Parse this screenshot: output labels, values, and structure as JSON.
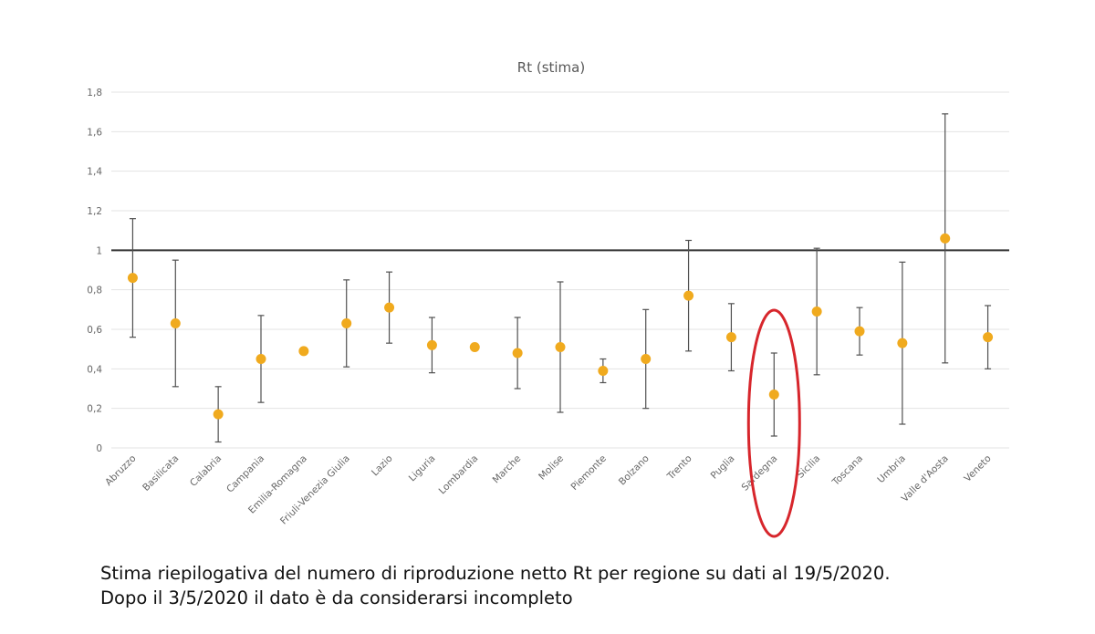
{
  "chart_data": {
    "type": "scatter",
    "subtype": "point estimates with error bars",
    "title": "Rt (stima)",
    "xlabel": "",
    "ylabel": "",
    "ylim": [
      0,
      1.8
    ],
    "yticks": [
      "0",
      "0,2",
      "0,4",
      "0,6",
      "0,8",
      "1",
      "1,2",
      "1,4",
      "1,6",
      "1,8"
    ],
    "ytick_values": [
      0,
      0.2,
      0.4,
      0.6,
      0.8,
      1.0,
      1.2,
      1.4,
      1.6,
      1.8
    ],
    "grid": true,
    "reference_line": 1.0,
    "categories": [
      "Abruzzo",
      "Basilicata",
      "Calabria",
      "Campania",
      "Emilia-Romagna",
      "Friuli-Venezia Giulia",
      "Lazio",
      "Liguria",
      "Lombardia",
      "Marche",
      "Molise",
      "Piemonte",
      "Bolzano",
      "Trento",
      "Puglia",
      "Sardegna",
      "Sicilia",
      "Toscana",
      "Umbria",
      "Valle d'Aosta",
      "Veneto"
    ],
    "values": [
      0.86,
      0.63,
      0.17,
      0.45,
      0.49,
      0.63,
      0.71,
      0.52,
      0.51,
      0.48,
      0.51,
      0.39,
      0.45,
      0.77,
      0.56,
      0.27,
      0.69,
      0.59,
      0.53,
      1.06,
      0.56
    ],
    "lower": [
      0.56,
      0.31,
      0.03,
      0.23,
      null,
      0.41,
      0.53,
      0.38,
      null,
      0.3,
      0.18,
      0.33,
      0.2,
      0.49,
      0.39,
      0.06,
      0.37,
      0.47,
      0.12,
      0.43,
      0.4
    ],
    "upper": [
      1.16,
      0.95,
      0.31,
      0.67,
      null,
      0.85,
      0.89,
      0.66,
      null,
      0.66,
      0.84,
      0.45,
      0.7,
      1.05,
      0.73,
      0.48,
      1.01,
      0.71,
      0.94,
      1.69,
      0.72
    ],
    "highlighted_category": "Sardegna",
    "colors": {
      "point": "#F0AA1E",
      "errorbar": "#505050",
      "grid": "#E3E3E3",
      "reference_line": "#333333",
      "highlight": "#D7262C",
      "title": "#595959",
      "axis_text": "#666666"
    }
  },
  "caption": {
    "line1": "Stima riepilogativa del numero di riproduzione netto Rt per regione su dati al 19/5/2020.",
    "line2": "Dopo il 3/5/2020 il dato è da considerarsi incompleto"
  }
}
